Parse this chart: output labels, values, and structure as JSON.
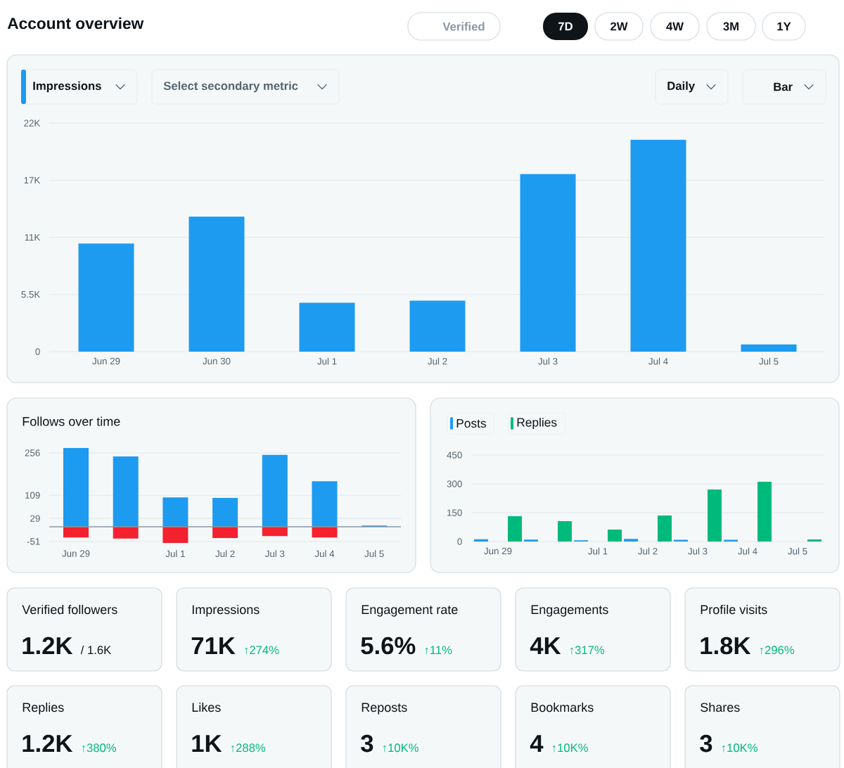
{
  "chart_data": [
    {
      "type": "bar",
      "title": "Account overview",
      "annotations": [
        "Verified",
        "7D",
        "2W",
        "4W",
        "3M",
        "1Y",
        "Impressions",
        "Select secondary metric",
        "Daily",
        "Bar"
      ],
      "categories": [
        "Jun 29",
        "Jun 30",
        "Jul 1",
        "Jul 2",
        "Jul 3",
        "Jul 4",
        "Jul 5"
      ],
      "values": [
        10400,
        13000,
        4700,
        4900,
        17100,
        20400,
        700
      ],
      "color": "#1d9bf0",
      "ylim": [
        0,
        22000
      ],
      "yticks": [
        0,
        {
          "value": 5500,
          "label": "5.5K"
        },
        {
          "value": 11000,
          "label": "11K"
        },
        {
          "value": 16500,
          "label": "17K"
        },
        {
          "value": 22000,
          "label": "22K"
        }
      ],
      "grid": "y"
    },
    {
      "type": "bar",
      "title": "Follows over time",
      "categories": [
        "Jun 29",
        null,
        "Jul 1",
        "Jul 2",
        "Jul 3",
        "Jul 4",
        "Jul 5"
      ],
      "series": [
        {
          "color": "#1d9bf0",
          "values": [
            273,
            244,
            102,
            100,
            249,
            158,
            4
          ]
        },
        {
          "color": "#f4212e",
          "values": [
            -37,
            -41,
            -56,
            -39,
            -32,
            -37,
            null
          ]
        }
      ],
      "stacked": true,
      "ylim": [
        -60,
        275
      ],
      "yticks": [
        -51,
        29,
        109,
        256
      ],
      "grid": "y"
    },
    {
      "type": "bar",
      "categories": [
        "Jun 29",
        null,
        "Jul 1",
        "Jul 2",
        "Jul 3",
        "Jul 4",
        "Jul 5"
      ],
      "series": [
        {
          "name": "Posts",
          "color": "#1d9bf0",
          "values": [
            12,
            10,
            6,
            14,
            9,
            9,
            null
          ]
        },
        {
          "name": "Replies",
          "color": "#00ba7c",
          "values": [
            132,
            106,
            62,
            135,
            271,
            311,
            11
          ]
        }
      ],
      "ylim": [
        0,
        450
      ],
      "yticks": [
        0,
        150,
        300,
        450
      ],
      "grid": "y",
      "legend": "top left"
    },
    {
      "type": "other",
      "annotations": [
        "Verified followers",
        "1.2K",
        "/ 1.6K",
        "Impressions",
        "71K",
        "↑274%",
        "Engagement rate",
        "5.6%",
        "↑11%",
        "Engagements",
        "4K",
        "↑317%",
        "Profile visits",
        "1.8K",
        "↑296%",
        "Replies",
        "1.2K",
        "↑380%",
        "Likes",
        "1K",
        "↑288%",
        "Reposts",
        "3",
        "↑10K%",
        "Bookmarks",
        "4",
        "↑10K%",
        "Shares",
        "3",
        "↑10K%"
      ],
      "colors": [
        "#0f1419",
        "#00ba7c",
        "#00ba7c",
        "#00ba7c",
        "#00ba7c",
        "#00ba7c",
        "#00ba7c",
        "#00ba7c",
        "#00ba7c",
        "#00ba7c"
      ]
    }
  ]
}
